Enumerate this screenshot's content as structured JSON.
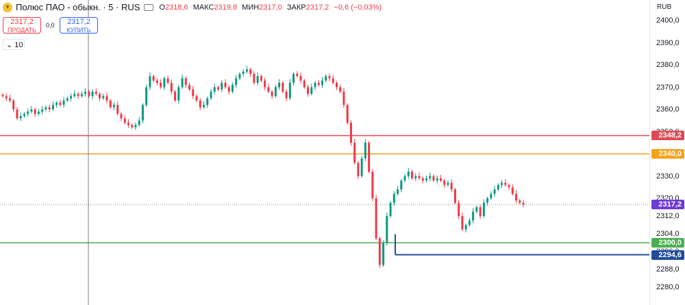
{
  "legend": {
    "symbol": "Полюс ПАО - обыкн. · 5 · RUS",
    "open_label": "О",
    "open_value": "2318,6",
    "high_label": "МАКС",
    "high_value": "2319,8",
    "low_label": "МИН",
    "low_value": "2317,0",
    "close_label": "ЗАКР",
    "close_value": "2317,2",
    "change": "−0,6 (−0,03%)"
  },
  "trade": {
    "sell_price": "2317,2",
    "sell_label": "ПРОДАТЬ",
    "spread": "0,0",
    "buy_price": "2317,2",
    "buy_label": "КУПИТЬ"
  },
  "volume_toggle": "10",
  "currency": "RUB",
  "colors": {
    "up": "#089981",
    "down": "#f23645",
    "line_red": "#e04a55",
    "line_orange": "#f6a21a",
    "line_green": "#4caf50",
    "line_blue": "#1e4d9b",
    "tag_current": "#6e3bd6"
  },
  "chart_data": {
    "type": "candlestick",
    "y_ticks": [
      "2400,0",
      "2390,0",
      "2380,0",
      "2370,0",
      "2360,0",
      "2350,0",
      "2330,0",
      "2320,0",
      "2312,0",
      "2304,0",
      "2296,0",
      "2288,0",
      "2280,0"
    ],
    "ylim": [
      2278,
      2402
    ],
    "close": [
      2366,
      2365,
      2364,
      2360,
      2356,
      2357,
      2358,
      2359,
      2360,
      2358,
      2359,
      2360,
      2361,
      2360,
      2362,
      2363,
      2362,
      2364,
      2365,
      2366,
      2367,
      2366,
      2367,
      2368,
      2366,
      2368,
      2367,
      2365,
      2366,
      2364,
      2361,
      2362,
      2358,
      2356,
      2354,
      2353,
      2352,
      2353,
      2355,
      2362,
      2370,
      2375,
      2373,
      2372,
      2370,
      2374,
      2372,
      2368,
      2364,
      2370,
      2374,
      2371,
      2369,
      2366,
      2364,
      2361,
      2362,
      2365,
      2368,
      2370,
      2369,
      2372,
      2370,
      2368,
      2371,
      2374,
      2376,
      2377,
      2378,
      2376,
      2372,
      2375,
      2373,
      2370,
      2368,
      2366,
      2370,
      2372,
      2368,
      2365,
      2372,
      2376,
      2375,
      2373,
      2370,
      2367,
      2370,
      2372,
      2371,
      2373,
      2375,
      2374,
      2372,
      2370,
      2368,
      2362,
      2354,
      2345,
      2336,
      2330,
      2338,
      2345,
      2332,
      2320,
      2302,
      2290,
      2300,
      2312,
      2318,
      2322,
      2324,
      2328,
      2330,
      2332,
      2329,
      2330,
      2329,
      2328,
      2329,
      2330,
      2328,
      2329,
      2328,
      2326,
      2327,
      2324,
      2318,
      2312,
      2306,
      2308,
      2310,
      2314,
      2316,
      2312,
      2318,
      2320,
      2322,
      2324,
      2326,
      2327,
      2326,
      2325,
      2322,
      2319,
      2318,
      2317.2
    ],
    "horizontal_levels": [
      {
        "price": 2348.2,
        "label": "2348,2",
        "color": "#e04a55"
      },
      {
        "price": 2340.0,
        "label": "2340,0",
        "color": "#f6a21a"
      },
      {
        "price": 2300.0,
        "label": "2300,0",
        "color": "#4caf50"
      },
      {
        "price": 2294.6,
        "label": "2294,6",
        "color": "#1e4d9b"
      }
    ],
    "last_price": {
      "price": 2317.2,
      "label": "2317,2",
      "color": "#6e3bd6"
    }
  }
}
